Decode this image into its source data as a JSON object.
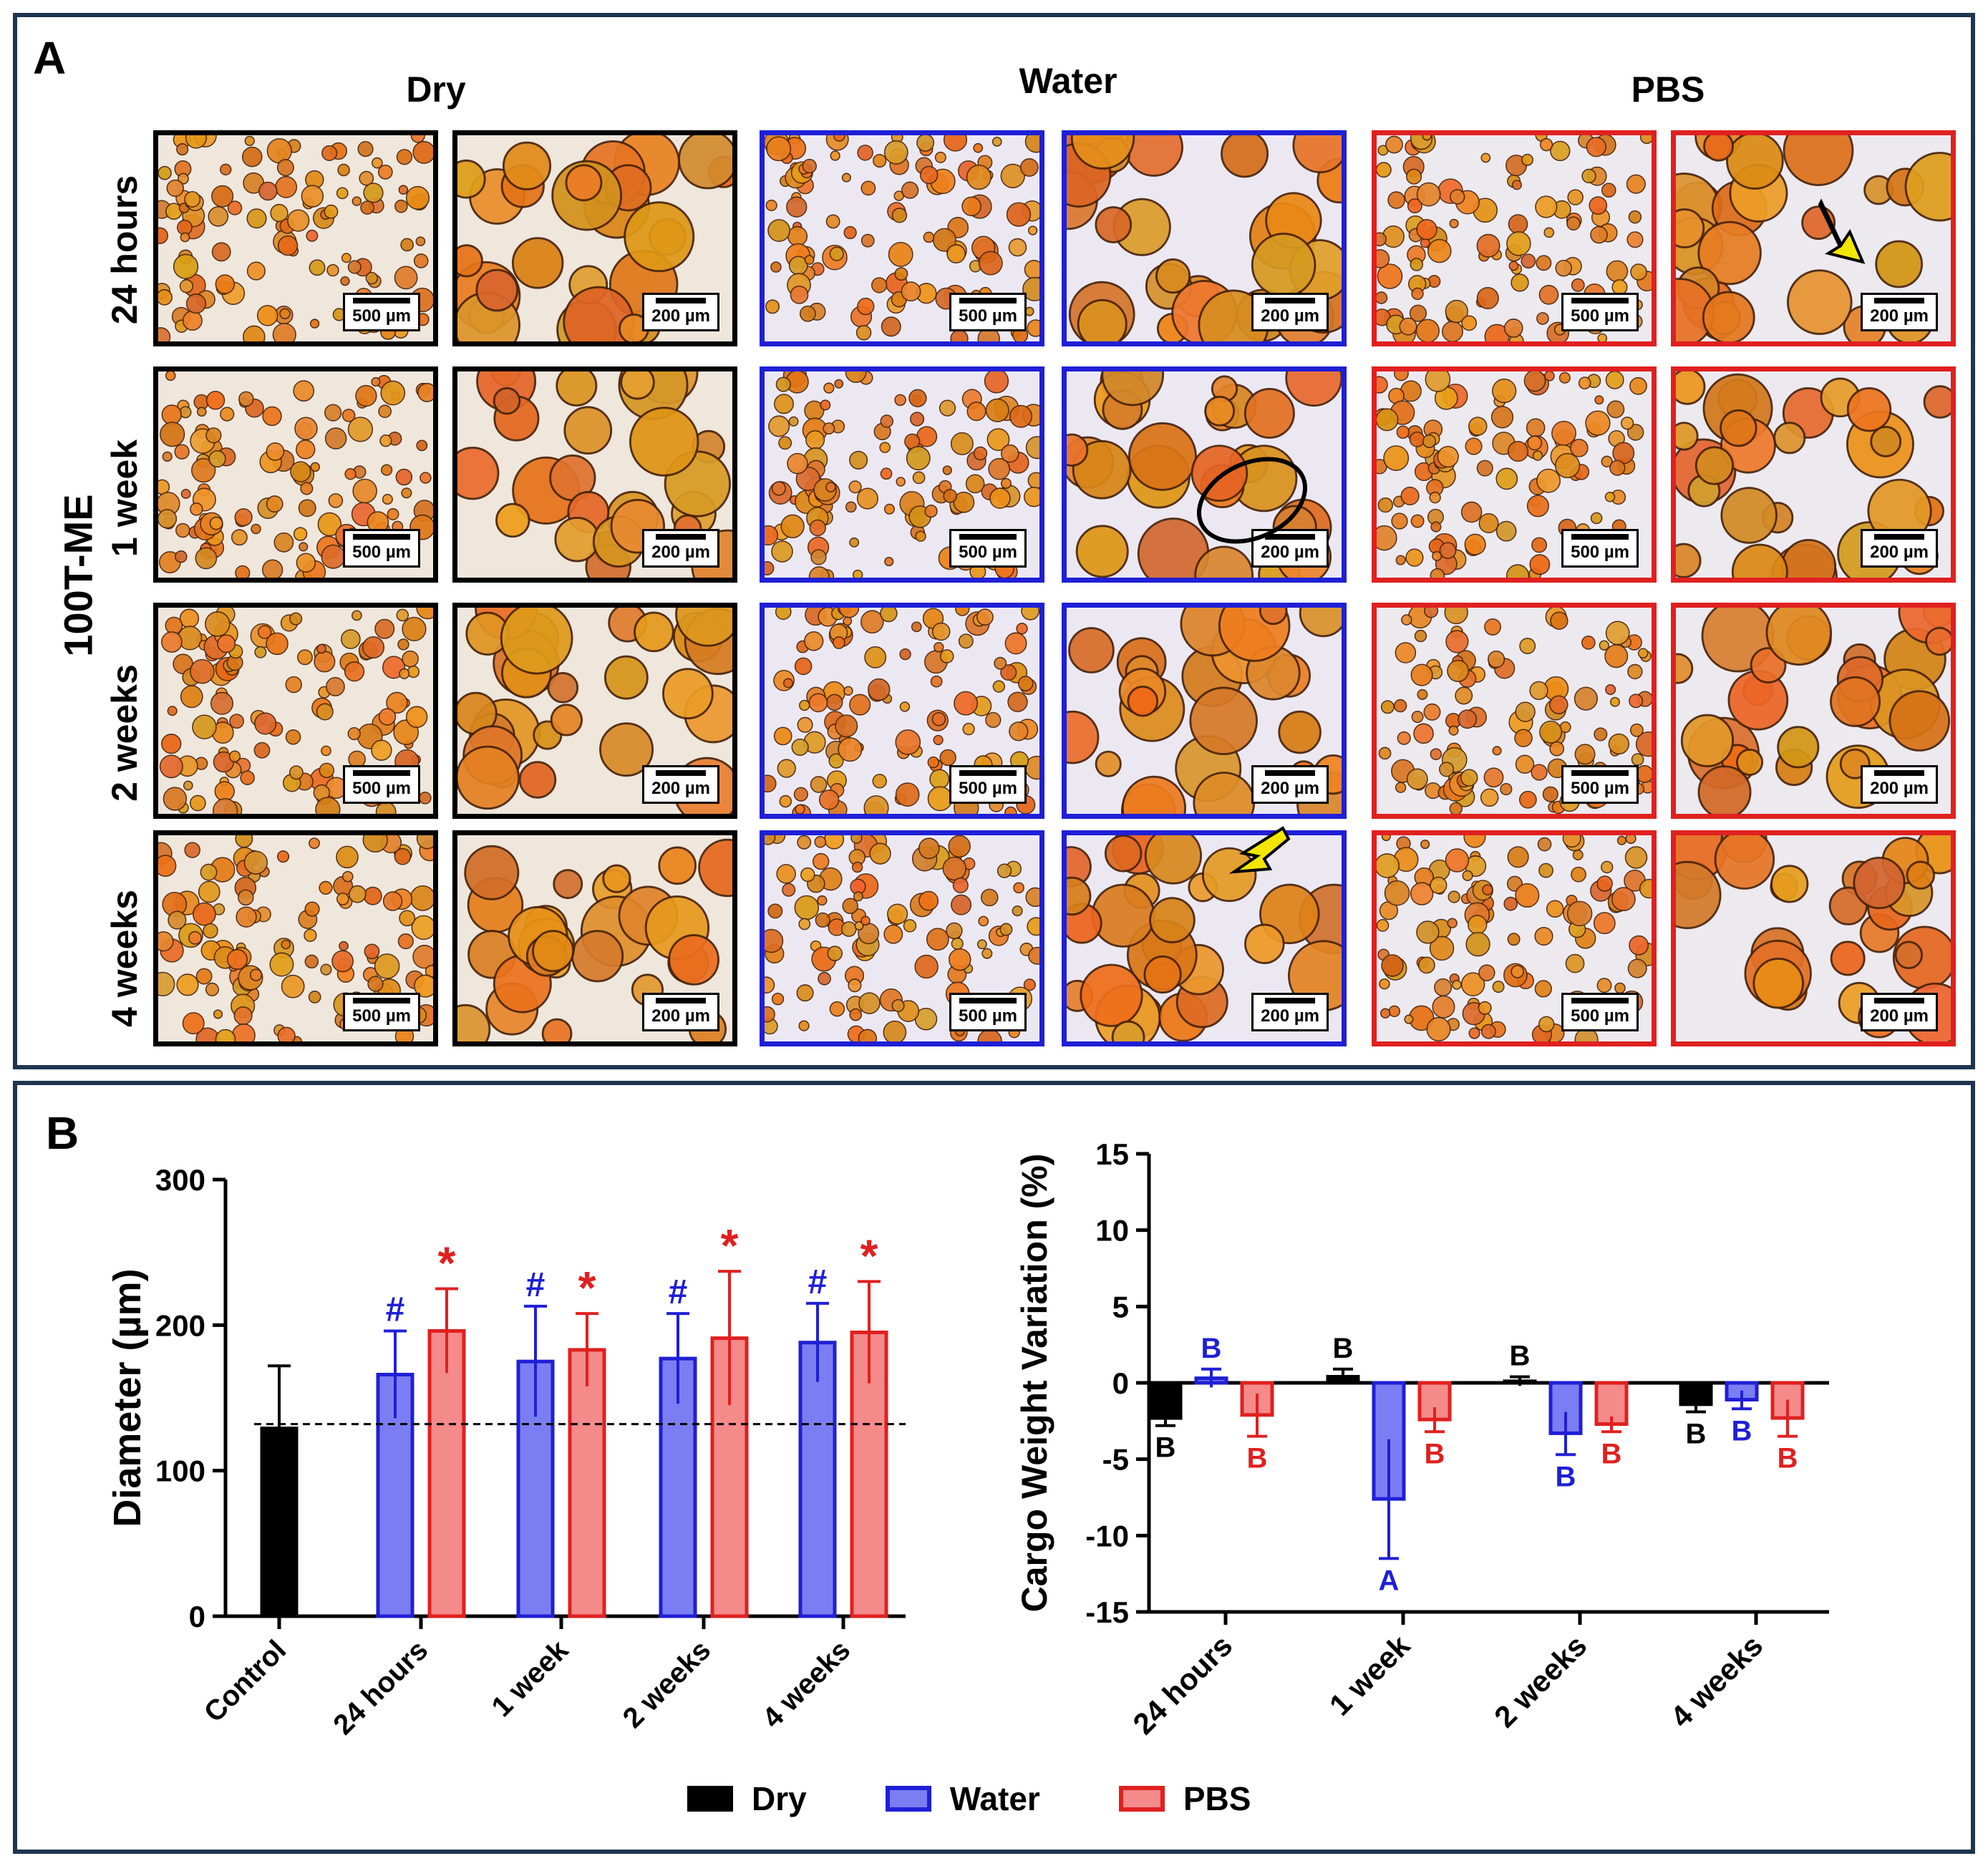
{
  "panel_a": {
    "letter": "A",
    "y_group_label": "100T-ME",
    "columns": [
      "Dry",
      "Water",
      "PBS"
    ],
    "rows": [
      "24 hours",
      "1 week",
      "2 weeks",
      "4 weeks"
    ],
    "scale_labels": [
      "500 µm",
      "200 µm"
    ]
  },
  "panel_b": {
    "letter": "B",
    "legend": [
      {
        "label": "Dry",
        "fill": "#000000",
        "stroke": "#000000"
      },
      {
        "label": "Water",
        "fill": "#7b7ef2",
        "stroke": "#1f1fd6"
      },
      {
        "label": "PBS",
        "fill": "#f58a8a",
        "stroke": "#e02020"
      }
    ]
  },
  "colors": {
    "dry": "#000000",
    "water": "#1f1fd6",
    "pbs": "#e02020",
    "water_fill": "#7b7ef2",
    "pbs_fill": "#f58a8a",
    "frame": "#1f3550"
  },
  "chart_data": [
    {
      "type": "bar",
      "ylabel": "Diameter (µm)",
      "ylim": [
        0,
        300
      ],
      "yticks": [
        0,
        100,
        200,
        300
      ],
      "categories": [
        "Control",
        "24 hours",
        "1 week",
        "2 weeks",
        "4 weeks"
      ],
      "reference_line": 132,
      "bars": [
        {
          "category": "Control",
          "series": "Dry",
          "value": 129,
          "err": 43,
          "mark": ""
        },
        {
          "category": "24 hours",
          "series": "Water",
          "value": 166,
          "err": 30,
          "mark": "#"
        },
        {
          "category": "24 hours",
          "series": "PBS",
          "value": 196,
          "err": 29,
          "mark": "*"
        },
        {
          "category": "1 week",
          "series": "Water",
          "value": 175,
          "err": 38,
          "mark": "#"
        },
        {
          "category": "1 week",
          "series": "PBS",
          "value": 183,
          "err": 25,
          "mark": "*"
        },
        {
          "category": "2 weeks",
          "series": "Water",
          "value": 177,
          "err": 31,
          "mark": "#"
        },
        {
          "category": "2 weeks",
          "series": "PBS",
          "value": 191,
          "err": 46,
          "mark": "*"
        },
        {
          "category": "4 weeks",
          "series": "Water",
          "value": 188,
          "err": 27,
          "mark": "#"
        },
        {
          "category": "4 weeks",
          "series": "PBS",
          "value": 195,
          "err": 35,
          "mark": "*"
        }
      ]
    },
    {
      "type": "bar",
      "ylabel": "Cargo Weight Variation (%)",
      "ylim": [
        -15,
        15
      ],
      "yticks": [
        -15,
        -10,
        -5,
        0,
        5,
        10,
        15
      ],
      "categories": [
        "24 hours",
        "1 week",
        "2 weeks",
        "4 weeks"
      ],
      "series": [
        {
          "name": "Dry",
          "values": [
            -2.3,
            0.4,
            0.1,
            -1.4
          ],
          "errors": [
            0.5,
            0.5,
            0.3,
            0.5
          ],
          "letters": [
            "B",
            "B",
            "B",
            "B"
          ]
        },
        {
          "name": "Water",
          "values": [
            0.3,
            -7.6,
            -3.3,
            -1.1
          ],
          "errors": [
            0.6,
            3.9,
            1.4,
            0.6
          ],
          "letters": [
            "B",
            "A",
            "B",
            "B"
          ]
        },
        {
          "name": "PBS",
          "values": [
            -2.1,
            -2.4,
            -2.7,
            -2.3
          ],
          "errors": [
            1.4,
            0.8,
            0.5,
            1.2
          ],
          "letters": [
            "B",
            "B",
            "B",
            "B"
          ]
        }
      ]
    }
  ]
}
